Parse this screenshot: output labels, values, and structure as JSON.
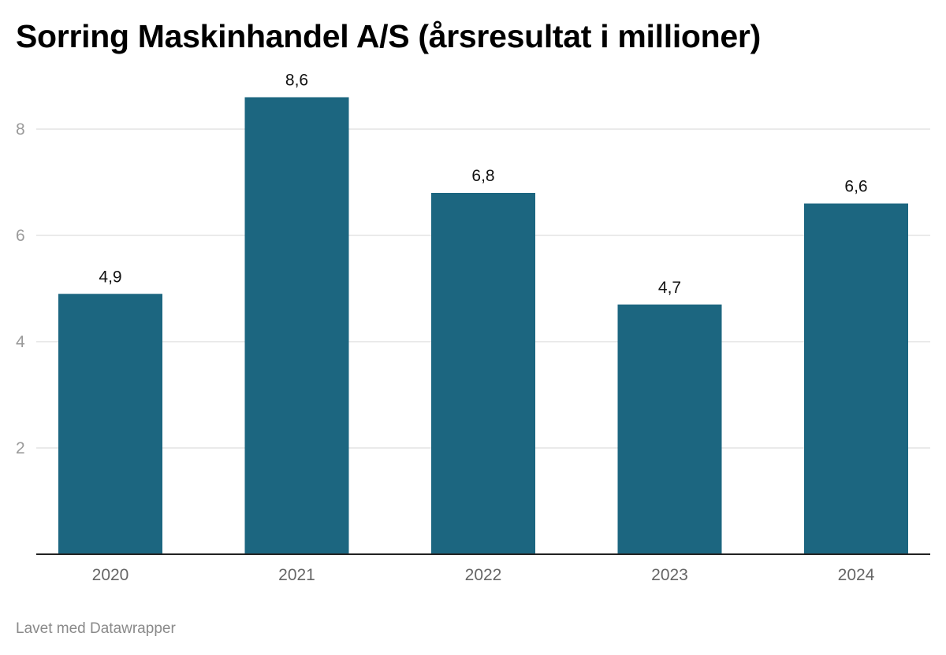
{
  "chart_data": {
    "type": "bar",
    "title": "Sorring Maskinhandel A/S (årsresultat i millioner)",
    "categories": [
      "2020",
      "2021",
      "2022",
      "2023",
      "2024"
    ],
    "values": [
      4.9,
      8.6,
      6.8,
      4.7,
      6.6
    ],
    "data_labels": [
      "4,9",
      "8,6",
      "6,8",
      "4,7",
      "6,6"
    ],
    "yticks": [
      2,
      4,
      6,
      8
    ],
    "ylim": [
      0,
      8.6
    ],
    "xlabel": "",
    "ylabel": "",
    "grid": true,
    "bar_color": "#1c6680"
  },
  "footer": {
    "credit": "Lavet med Datawrapper"
  }
}
